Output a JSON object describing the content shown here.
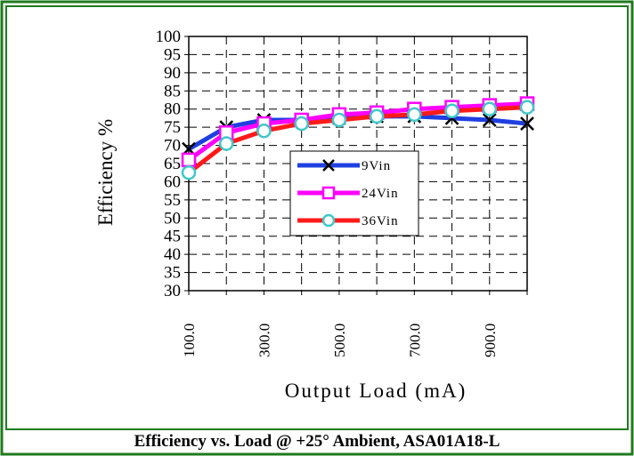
{
  "colors": {
    "border": "#1f7a1f",
    "grid": "#000000",
    "series_9v": "#1f3fe0",
    "series_24v": "#ff00ff",
    "series_36v": "#ff1a1a",
    "marker_36v": "#40c8c8"
  },
  "caption": "Efficiency vs. Load @ +25° Ambient, ASA01A18-L",
  "chart_data": {
    "type": "line",
    "title": "",
    "xlabel": "Output Load (mA)",
    "ylabel": "Efficiency %",
    "xlim": [
      100,
      1000
    ],
    "ylim": [
      30,
      100
    ],
    "x_ticks": [
      100,
      300,
      500,
      700,
      900
    ],
    "x_tick_labels": [
      "100.0",
      "300.0",
      "500.0",
      "700.0",
      "900.0"
    ],
    "y_ticks": [
      30,
      35,
      40,
      45,
      50,
      55,
      60,
      65,
      70,
      75,
      80,
      85,
      90,
      95,
      100
    ],
    "y_tick_labels": [
      "30",
      "35",
      "40",
      "45",
      "50",
      "55",
      "60",
      "65",
      "70",
      "75",
      "80",
      "85",
      "90",
      "95",
      "100"
    ],
    "grid": true,
    "legend_position": "center-right",
    "x": [
      100,
      200,
      300,
      400,
      500,
      600,
      700,
      800,
      900,
      1000
    ],
    "series": [
      {
        "name": "9Vin",
        "marker": "x",
        "values": [
          69,
          75,
          77,
          77,
          77.5,
          78,
          78,
          77.5,
          77,
          76
        ]
      },
      {
        "name": "24Vin",
        "marker": "square",
        "values": [
          66,
          73.5,
          76,
          77,
          78.5,
          79,
          80,
          80.5,
          81,
          81.5
        ]
      },
      {
        "name": "36Vin",
        "marker": "circle",
        "values": [
          62.5,
          70.5,
          74,
          76,
          77,
          78,
          78.5,
          79.5,
          80,
          80.5
        ]
      }
    ]
  }
}
